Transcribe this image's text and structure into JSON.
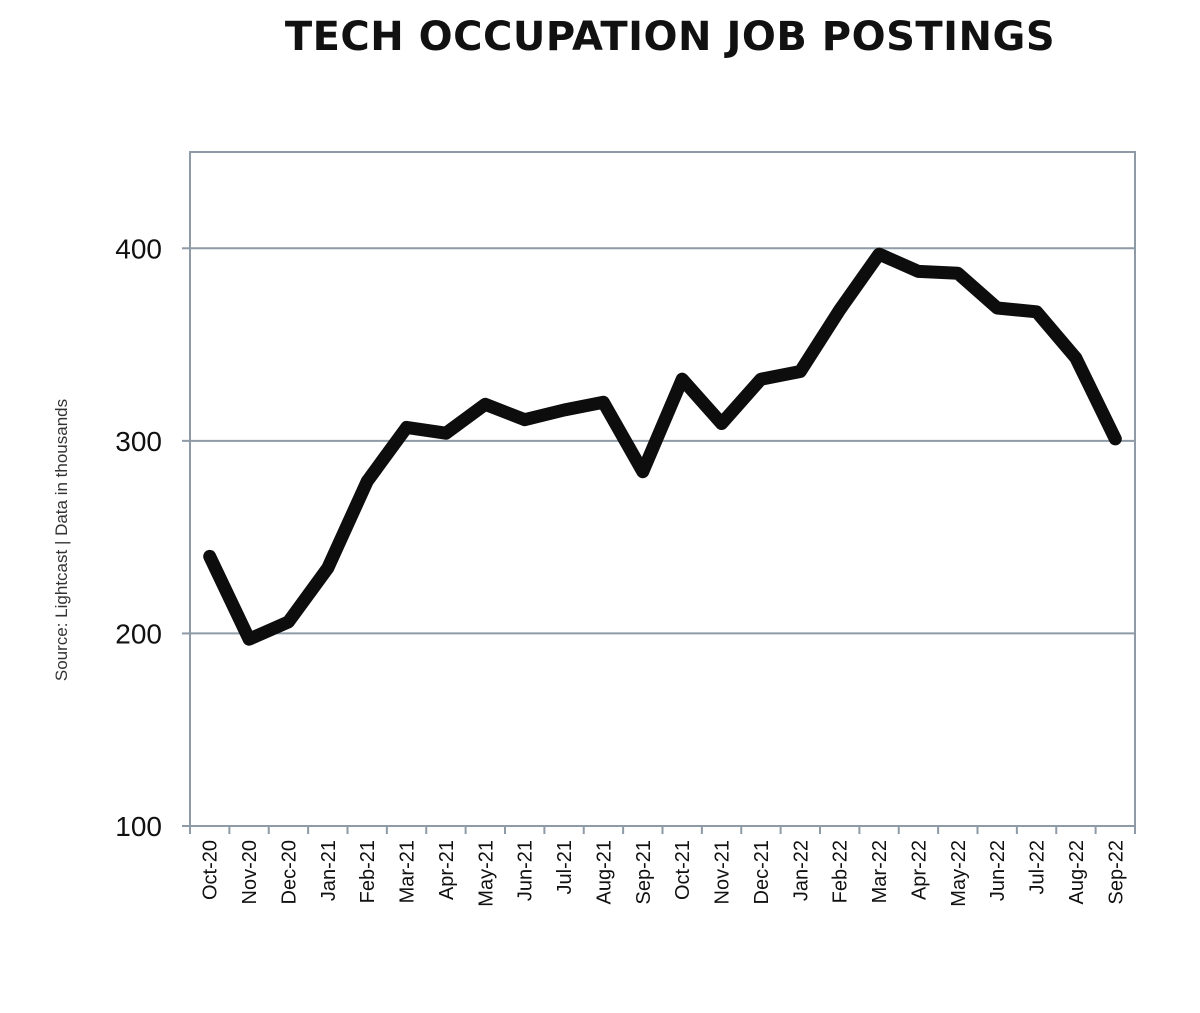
{
  "chart_data": {
    "type": "line",
    "title": "TECH OCCUPATION JOB POSTINGS",
    "source_note": "Source: Lightcast | Data in thousands",
    "xlabel": "",
    "ylabel": "",
    "categories": [
      "Oct-20",
      "Nov-20",
      "Dec-20",
      "Jan-21",
      "Feb-21",
      "Mar-21",
      "Apr-21",
      "May-21",
      "Jun-21",
      "Jul-21",
      "Aug-21",
      "Sep-21",
      "Oct-21",
      "Nov-21",
      "Dec-21",
      "Jan-22",
      "Feb-22",
      "Mar-22",
      "Apr-22",
      "May-22",
      "Jun-22",
      "Jul-22",
      "Aug-22",
      "Sep-22"
    ],
    "series": [
      {
        "values": [
          240,
          197,
          206,
          234,
          279,
          307,
          304,
          319,
          311,
          316,
          320,
          284,
          332,
          309,
          332,
          336,
          368,
          397,
          388,
          387,
          369,
          367,
          343,
          301
        ]
      }
    ],
    "yticks": [
      100,
      200,
      300,
      400
    ],
    "ylim": [
      100,
      450
    ],
    "grid": "horizontal",
    "legend": "none",
    "colors": {
      "line": "#0d0d0d",
      "grid": "#8e9aa6",
      "axis": "#8e9aa6",
      "text": "#111111"
    }
  }
}
